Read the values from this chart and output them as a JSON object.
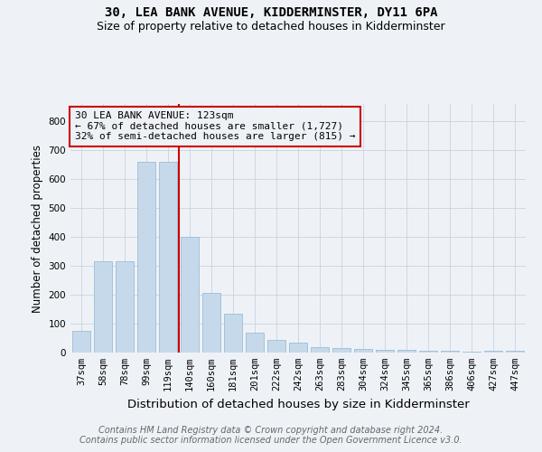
{
  "title": "30, LEA BANK AVENUE, KIDDERMINSTER, DY11 6PA",
  "subtitle": "Size of property relative to detached houses in Kidderminster",
  "xlabel": "Distribution of detached houses by size in Kidderminster",
  "ylabel": "Number of detached properties",
  "categories": [
    "37sqm",
    "58sqm",
    "78sqm",
    "99sqm",
    "119sqm",
    "140sqm",
    "160sqm",
    "181sqm",
    "201sqm",
    "222sqm",
    "242sqm",
    "263sqm",
    "283sqm",
    "304sqm",
    "324sqm",
    "345sqm",
    "365sqm",
    "386sqm",
    "406sqm",
    "427sqm",
    "447sqm"
  ],
  "values": [
    75,
    315,
    315,
    660,
    660,
    400,
    205,
    135,
    70,
    45,
    35,
    20,
    15,
    12,
    8,
    8,
    5,
    5,
    3,
    5,
    7
  ],
  "bar_color": "#c6d9ea",
  "bar_edge_color": "#9bbdd4",
  "grid_color": "#c8d4e0",
  "vline_x_index": 4.5,
  "vline_color": "#cc0000",
  "annotation_text": "30 LEA BANK AVENUE: 123sqm\n← 67% of detached houses are smaller (1,727)\n32% of semi-detached houses are larger (815) →",
  "annotation_box_color": "#cc0000",
  "ylim": [
    0,
    860
  ],
  "yticks": [
    0,
    100,
    200,
    300,
    400,
    500,
    600,
    700,
    800
  ],
  "footer_text": "Contains HM Land Registry data © Crown copyright and database right 2024.\nContains public sector information licensed under the Open Government Licence v3.0.",
  "bg_color": "#eef2f7",
  "plot_bg_color": "#eef2f7",
  "title_fontsize": 10,
  "subtitle_fontsize": 9,
  "xlabel_fontsize": 9.5,
  "ylabel_fontsize": 8.5,
  "tick_fontsize": 7.5,
  "footer_fontsize": 7,
  "annotation_fontsize": 8
}
